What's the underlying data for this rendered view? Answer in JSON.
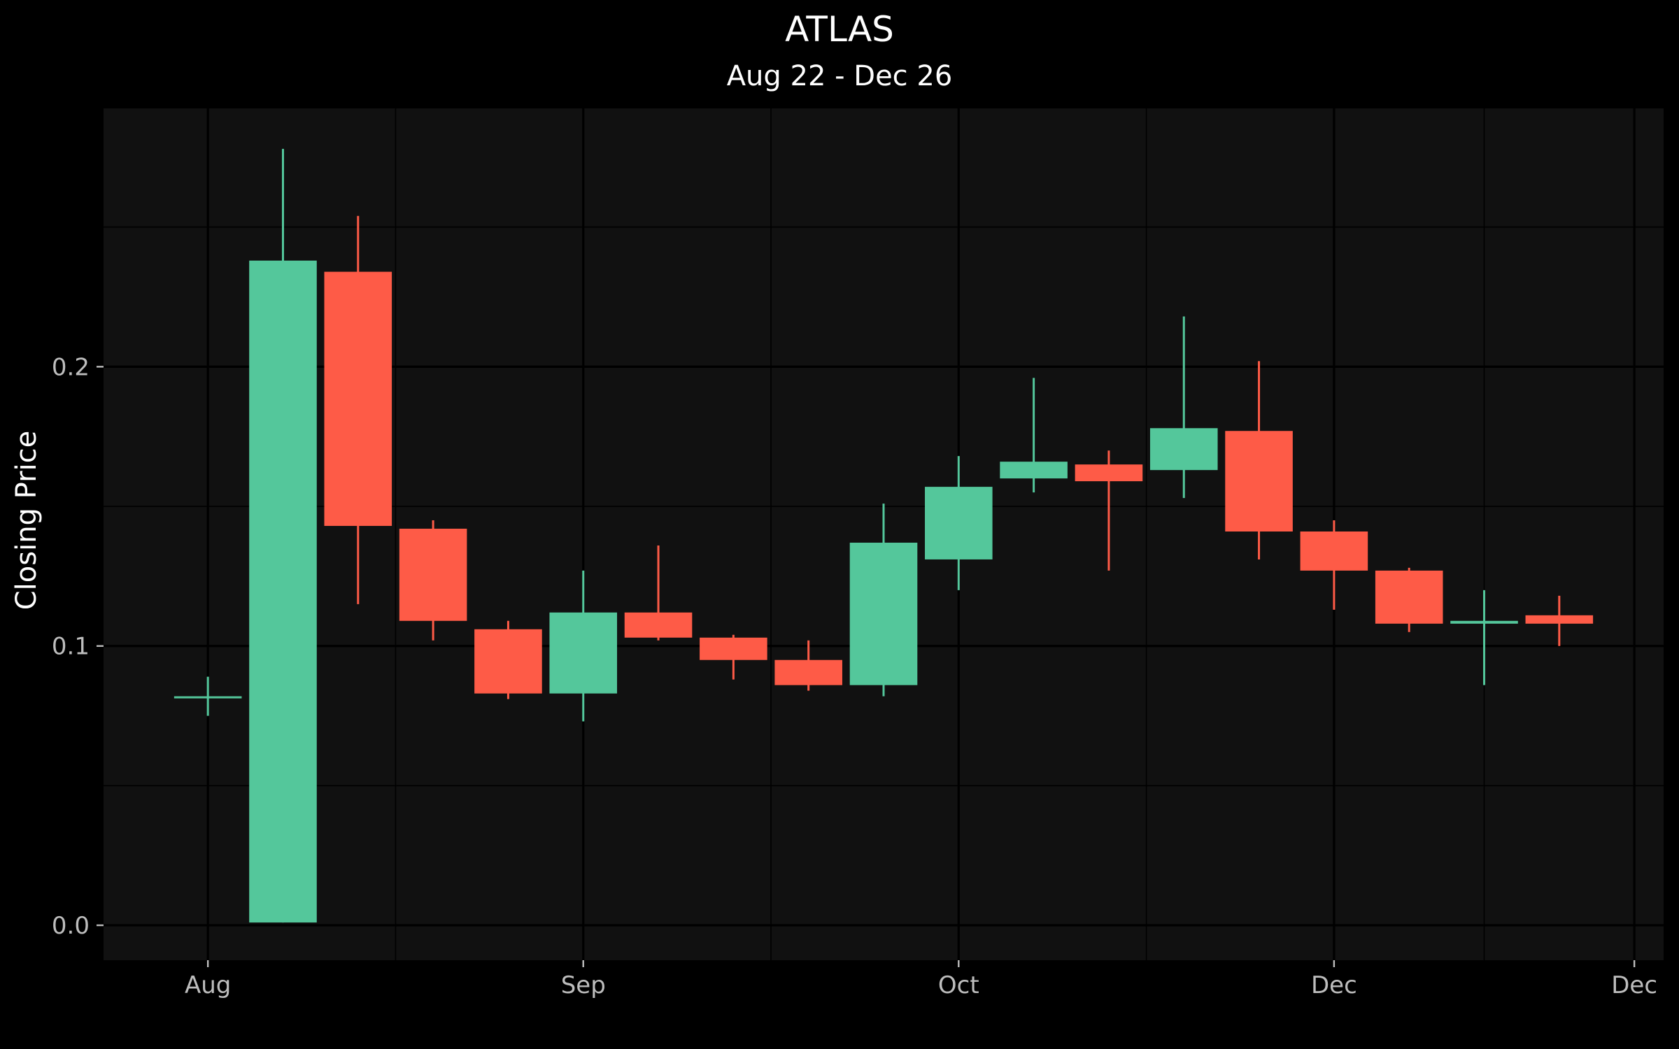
{
  "chart_data": {
    "type": "candlestick",
    "title": "ATLAS",
    "subtitle": "Aug 22 - Dec 26",
    "ylabel": "Closing Price",
    "xlabel": "",
    "ylim": [
      -0.0125,
      0.2925
    ],
    "grid": true,
    "y_ticks": [
      0.0,
      0.1,
      0.2
    ],
    "y_tick_labels": [
      "0.0",
      "0.1",
      "0.2"
    ],
    "x_ticks": [
      0,
      5,
      10,
      15,
      19
    ],
    "x_tick_labels": [
      "Aug",
      "Sep",
      "Oct",
      "Dec",
      "Dec"
    ],
    "xlim": [
      -1.39,
      19.39
    ],
    "colors": {
      "up": "#54c79b",
      "down": "#fe5b47",
      "background": "#000000",
      "panel": "#111111",
      "grid": "#000000"
    },
    "candles": [
      {
        "x": 0,
        "open": 0.082,
        "close": 0.082,
        "high": 0.089,
        "low": 0.075
      },
      {
        "x": 1,
        "open": 0.001,
        "close": 0.238,
        "high": 0.278,
        "low": 0.001
      },
      {
        "x": 2,
        "open": 0.234,
        "close": 0.143,
        "high": 0.254,
        "low": 0.115
      },
      {
        "x": 3,
        "open": 0.142,
        "close": 0.109,
        "high": 0.145,
        "low": 0.102
      },
      {
        "x": 4,
        "open": 0.106,
        "close": 0.083,
        "high": 0.109,
        "low": 0.081
      },
      {
        "x": 5,
        "open": 0.083,
        "close": 0.112,
        "high": 0.127,
        "low": 0.073
      },
      {
        "x": 6,
        "open": 0.112,
        "close": 0.103,
        "high": 0.136,
        "low": 0.102
      },
      {
        "x": 7,
        "open": 0.103,
        "close": 0.095,
        "high": 0.104,
        "low": 0.088
      },
      {
        "x": 8,
        "open": 0.095,
        "close": 0.086,
        "high": 0.102,
        "low": 0.084
      },
      {
        "x": 9,
        "open": 0.086,
        "close": 0.137,
        "high": 0.151,
        "low": 0.082
      },
      {
        "x": 10,
        "open": 0.131,
        "close": 0.157,
        "high": 0.168,
        "low": 0.12
      },
      {
        "x": 11,
        "open": 0.16,
        "close": 0.166,
        "high": 0.196,
        "low": 0.155
      },
      {
        "x": 12,
        "open": 0.165,
        "close": 0.159,
        "high": 0.17,
        "low": 0.127
      },
      {
        "x": 13,
        "open": 0.163,
        "close": 0.178,
        "high": 0.218,
        "low": 0.153
      },
      {
        "x": 14,
        "open": 0.177,
        "close": 0.141,
        "high": 0.202,
        "low": 0.131
      },
      {
        "x": 15,
        "open": 0.141,
        "close": 0.127,
        "high": 0.145,
        "low": 0.113
      },
      {
        "x": 16,
        "open": 0.127,
        "close": 0.108,
        "high": 0.128,
        "low": 0.105
      },
      {
        "x": 17,
        "open": 0.108,
        "close": 0.109,
        "high": 0.12,
        "low": 0.086
      },
      {
        "x": 18,
        "open": 0.111,
        "close": 0.108,
        "high": 0.118,
        "low": 0.1
      }
    ]
  }
}
